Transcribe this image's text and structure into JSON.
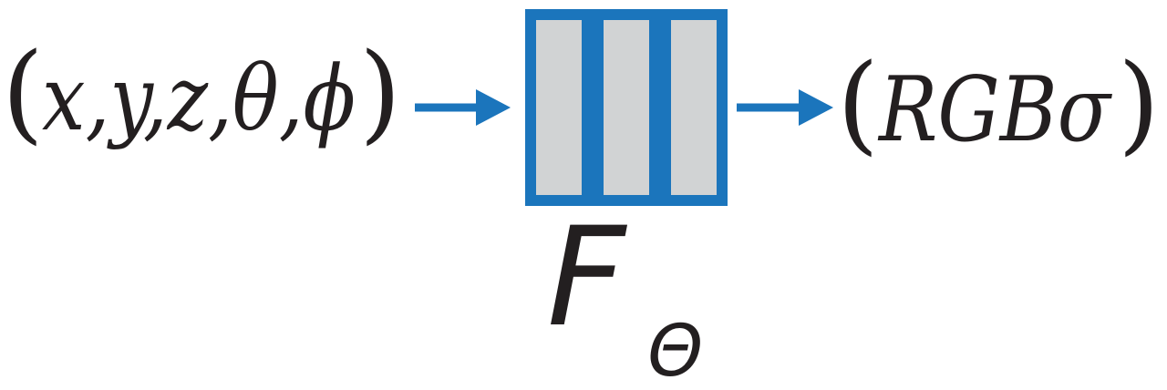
{
  "input": {
    "open_paren": "(",
    "vars": "x,y,z,θ,ϕ",
    "close_paren": ")"
  },
  "network": {
    "function_letter": "F",
    "subscript": "Θ",
    "layer_count": 3
  },
  "output": {
    "open_paren": "(",
    "value": "RGBσ",
    "close_paren": ")"
  },
  "colors": {
    "accent": "#1b75bc",
    "layer_fill": "#d1d3d4",
    "text": "#231f20",
    "background": "#ffffff"
  }
}
